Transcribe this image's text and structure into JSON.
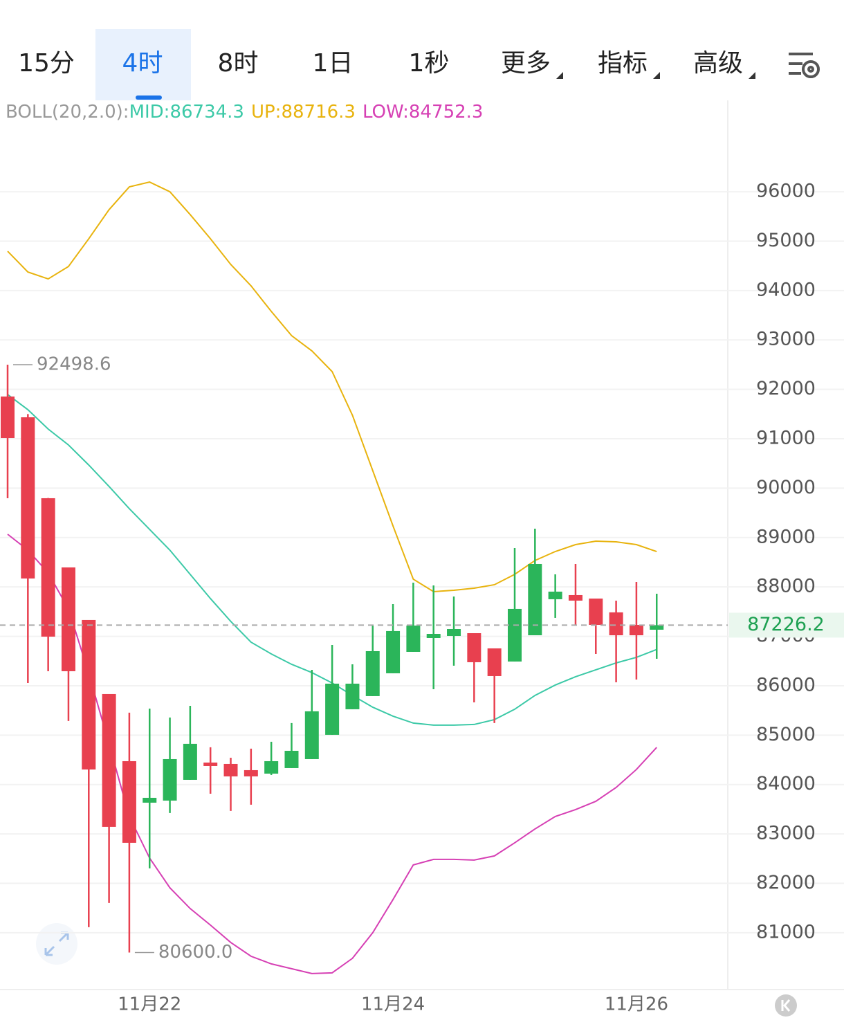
{
  "tabs": [
    "15分",
    "4时",
    "8时",
    "1日",
    "1秒",
    "更多",
    "指标",
    "高级"
  ],
  "active_tab": 1,
  "chart_data": {
    "type": "candlestick",
    "indicator": "BOLL(20,2.0):",
    "categories": [
      null,
      null,
      null,
      null,
      null,
      null,
      null,
      "11月22",
      null,
      null,
      null,
      null,
      null,
      null,
      null,
      null,
      null,
      null,
      null,
      "11月24",
      null,
      null,
      null,
      null,
      null,
      null,
      null,
      null,
      null,
      null,
      null,
      "11月26",
      null
    ],
    "open": [
      91854,
      91434,
      89796,
      88395,
      87331,
      85832,
      84473,
      83633,
      83675,
      84095,
      84445,
      84417,
      84291,
      84221,
      84333,
      84515,
      85006,
      85524,
      85790,
      86252,
      86686,
      86966,
      87008,
      87064,
      86756,
      86490,
      87022,
      87751,
      87835,
      87765,
      87485,
      87232,
      87134
    ],
    "high": [
      92498.6,
      91500,
      89800,
      88395,
      87331,
      85832,
      85454,
      85538,
      85356,
      85594,
      84754,
      84543,
      84726,
      84866,
      85244,
      86322,
      86826,
      86434,
      87232,
      87653,
      88087,
      88031,
      87807,
      87064,
      86756,
      88787,
      89179,
      88255,
      88465,
      87765,
      87723,
      88101,
      87863
    ],
    "low": [
      89796,
      86056,
      86294,
      85286,
      81112,
      81602,
      80600,
      82303,
      83423,
      84095,
      83815,
      83465,
      83591,
      84193,
      84333,
      84515,
      85006,
      85524,
      85790,
      86252,
      86686,
      85930,
      86406,
      85664,
      85244,
      86490,
      87022,
      87373,
      87232,
      86644,
      86070,
      86126,
      86546
    ],
    "close": [
      91014,
      88171,
      86994,
      86294,
      84305,
      83143,
      82821,
      83731,
      84515,
      84824,
      84375,
      84165,
      84165,
      84473,
      84683,
      85482,
      86042,
      86042,
      86700,
      87107,
      87218,
      87050,
      87148,
      86476,
      86196,
      87555,
      88465,
      87905,
      87723,
      87232,
      87022,
      87022,
      87226.2
    ],
    "up_color": "#2bb55a",
    "down_color": "#e8404f",
    "series": [
      {
        "name": "MID:86734.3",
        "color": "#3cc9a7",
        "values": [
          91896,
          91588,
          91196,
          90874,
          90468,
          90034,
          89585,
          89165,
          88745,
          88255,
          87765,
          87303,
          86882,
          86644,
          86434,
          86266,
          86056,
          85804,
          85566,
          85384,
          85244,
          85202,
          85202,
          85216,
          85314,
          85524,
          85804,
          86014,
          86182,
          86322,
          86462,
          86574,
          86734.3
        ]
      },
      {
        "name": "UP:88716.3",
        "color": "#e8b30e",
        "values": [
          94796,
          94375,
          94235,
          94487,
          95048,
          95636,
          96098,
          96196,
          96000,
          95538,
          95048,
          94529,
          94095,
          93577,
          93087,
          92779,
          92359,
          91476,
          90356,
          89235,
          88157,
          87905,
          87933,
          87975,
          88045,
          88255,
          88535,
          88717,
          88857,
          88927,
          88913,
          88857,
          88716.3
        ]
      },
      {
        "name": "LOW:84752.3",
        "color": "#d640b4",
        "values": [
          89067,
          88745,
          88283,
          87555,
          86252,
          84824,
          83353,
          82513,
          81910,
          81490,
          81154,
          80804,
          80524,
          80370,
          80272,
          80174,
          80188,
          80482,
          81000,
          81672,
          82373,
          82485,
          82485,
          82471,
          82555,
          82821,
          83101,
          83353,
          83493,
          83661,
          83941,
          84305,
          84752.3
        ]
      }
    ],
    "ylim": [
      79850,
      97850
    ],
    "yticks": [
      81000,
      82000,
      83000,
      84000,
      85000,
      86000,
      87000,
      88000,
      89000,
      90000,
      91000,
      92000,
      93000,
      94000,
      95000,
      96000
    ],
    "grid": true,
    "last_price": 87226.2,
    "high_annotation": {
      "value": 92498.6,
      "label": "92498.6"
    },
    "low_annotation": {
      "value": 80600,
      "label": "80600.0"
    }
  }
}
